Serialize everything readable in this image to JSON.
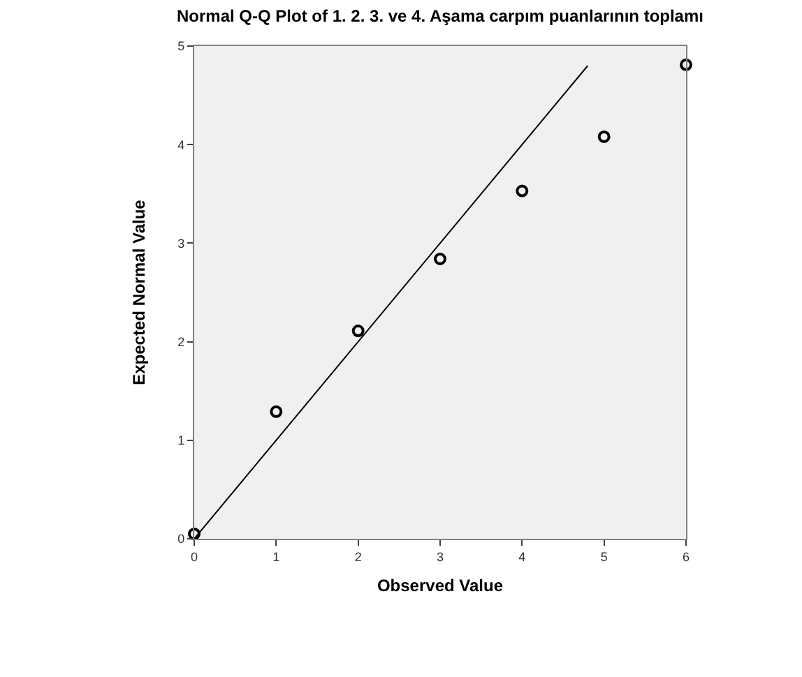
{
  "chart_data": {
    "type": "scatter",
    "title": "Normal Q-Q Plot of 1. 2. 3. ve 4. Aşama carpım puanlarının toplamı",
    "xlabel": "Observed Value",
    "ylabel": "Expected Normal Value",
    "series": [
      {
        "color": "#000000",
        "marker": "circle",
        "x": [
          0,
          1,
          2,
          3,
          4,
          5,
          6
        ],
        "values": [
          0.05,
          1.29,
          2.11,
          2.84,
          3.53,
          4.08,
          4.81
        ]
      },
      {
        "type": "line",
        "color": "#000000",
        "marker": "none",
        "line_style": "solid",
        "x": [
          0,
          4.8
        ],
        "values": [
          0,
          4.8
        ]
      }
    ],
    "xlim": [
      0,
      6
    ],
    "xticks": [
      0,
      1,
      2,
      3,
      4,
      5,
      6
    ],
    "ylim": [
      0,
      5
    ],
    "yticks": [
      0,
      1,
      2,
      3,
      4,
      5
    ],
    "grid": false
  }
}
